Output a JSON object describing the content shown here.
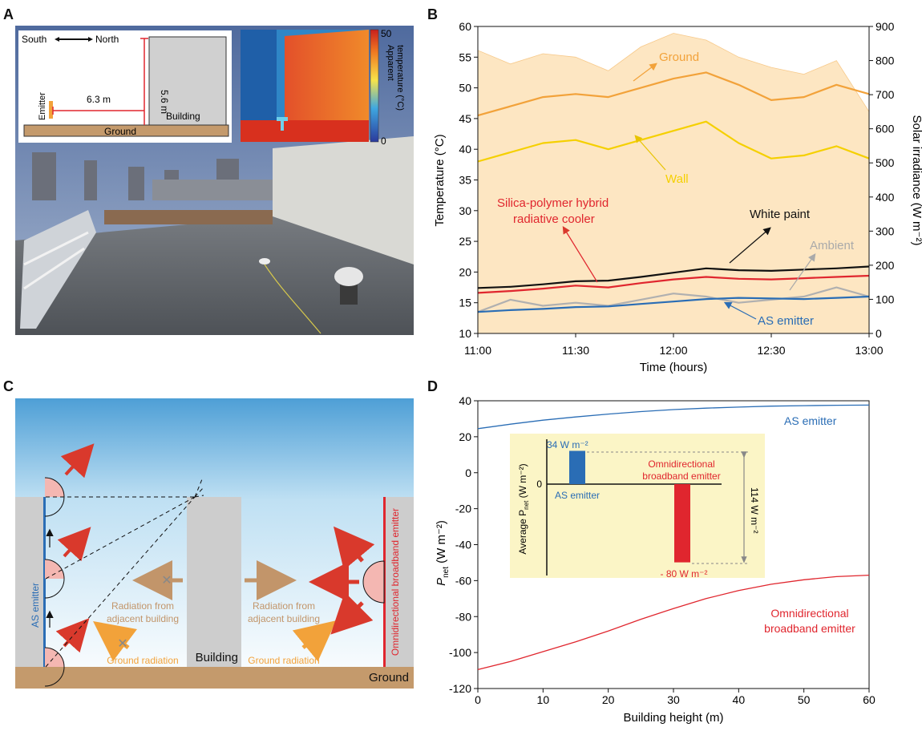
{
  "panels": {
    "a": "A",
    "b": "B",
    "c": "C",
    "d": "D"
  },
  "panelA": {
    "direction_south": "South",
    "direction_north": "North",
    "dist_horizontal": "6.3 m",
    "dist_vertical": "5.6 m",
    "emitter_label": "Emitter",
    "building_label": "Building",
    "ground_label": "Ground",
    "thermal": {
      "colorbar_max": "50",
      "colorbar_min": "0",
      "colorbar_label_1": "Apparent",
      "colorbar_label_2": "temperature (°C)"
    },
    "colors": {
      "photo_sky": "#5a6f9a",
      "roof": "#5b6066",
      "wall": "#d9d9d4",
      "thermal_hot": "#e0402a",
      "thermal_cold": "#3a8ad0"
    }
  },
  "panelC": {
    "as_emitter_label": "AS emitter",
    "omni_label": "Omnidirectional broadband emitter",
    "building_label": "Building",
    "ground_label": "Ground",
    "rad_adjacent_left_1": "Radiation from",
    "rad_adjacent_left_2": "adjacent building",
    "rad_adjacent_right_1": "Radiation from",
    "rad_adjacent_right_2": "adjacent building",
    "ground_rad_left": "Ground radiation",
    "ground_rad_right": "Ground radiation",
    "colors": {
      "sky_top": "#56a6d8",
      "building": "#cdcdcd",
      "ground": "#c49a6c",
      "as_emitter": "#2a6db5",
      "omni": "#e0262e",
      "arrow_red": "#d9392c",
      "arrow_brown": "#c2956a",
      "arrow_orange": "#f2a23a"
    }
  },
  "chart_data": [
    {
      "type": "line",
      "x_ticks": [
        "11:00",
        "11:30",
        "12:00",
        "12:30",
        "13:00"
      ],
      "xlabel": "Time (hours)",
      "ylabel": "Temperature (°C)",
      "ylabel_right": "Solar irradiance (W m⁻²)",
      "ylim": [
        10,
        60
      ],
      "ylim_right": [
        0,
        900
      ],
      "y_ticks": [
        "10",
        "15",
        "20",
        "25",
        "30",
        "35",
        "40",
        "45",
        "50",
        "55",
        "60"
      ],
      "y_ticks_right": [
        "0",
        "100",
        "200",
        "300",
        "400",
        "500",
        "600",
        "700",
        "800",
        "900"
      ],
      "x_minutes": [
        0,
        10,
        20,
        30,
        40,
        50,
        60,
        70,
        80,
        90,
        100,
        110,
        120
      ],
      "series": [
        {
          "name": "Ground",
          "color": "#f2a23a",
          "values": [
            45.5,
            47.0,
            48.5,
            49.0,
            48.5,
            50.0,
            51.5,
            52.5,
            50.5,
            48.0,
            48.5,
            50.5,
            49.0
          ]
        },
        {
          "name": "Wall",
          "color": "#f5d000",
          "values": [
            38.0,
            39.5,
            41.0,
            41.5,
            40.0,
            41.5,
            43.0,
            44.5,
            41.0,
            38.5,
            39.0,
            40.5,
            38.5
          ]
        },
        {
          "name": "White paint",
          "color": "#111111",
          "values": [
            17.4,
            17.6,
            18.0,
            18.5,
            18.6,
            19.2,
            19.9,
            20.6,
            20.3,
            20.2,
            20.4,
            20.6,
            20.9
          ]
        },
        {
          "name": "Silica-polymer hybrid radiative cooler",
          "color": "#e0262e",
          "values": [
            16.6,
            16.9,
            17.3,
            17.8,
            17.5,
            18.2,
            18.8,
            19.2,
            18.9,
            18.8,
            19.0,
            19.2,
            19.4
          ]
        },
        {
          "name": "Ambient",
          "color": "#b0b0b0",
          "values": [
            13.5,
            15.5,
            14.5,
            15.0,
            14.5,
            15.5,
            16.5,
            16.0,
            15.0,
            15.5,
            16.0,
            17.5,
            16.0
          ]
        },
        {
          "name": "AS emitter",
          "color": "#2a6db5",
          "values": [
            13.5,
            13.8,
            14.0,
            14.3,
            14.4,
            14.8,
            15.2,
            15.6,
            15.8,
            15.7,
            15.6,
            15.8,
            16.0
          ]
        }
      ],
      "irradiance": {
        "name": "Solar irradiance",
        "color": "#fde6c2",
        "values": [
          830,
          790,
          820,
          810,
          770,
          840,
          880,
          860,
          810,
          780,
          760,
          800,
          650
        ]
      },
      "labels": {
        "ground": "Ground",
        "wall": "Wall",
        "white_paint": "White paint",
        "cooler_1": "Silica-polymer hybrid",
        "cooler_2": "radiative cooler",
        "ambient": "Ambient",
        "as_emitter": "AS emitter"
      }
    },
    {
      "type": "line",
      "xlabel": "Building height (m)",
      "ylabel": "P",
      "ylabel_sub": "net",
      "ylabel_unit": " (W m⁻²)",
      "xlim": [
        0,
        60
      ],
      "ylim": [
        -120,
        40
      ],
      "x_ticks": [
        "0",
        "10",
        "20",
        "30",
        "40",
        "50",
        "60"
      ],
      "y_ticks": [
        "-120",
        "-100",
        "-80",
        "-60",
        "-40",
        "-20",
        "0",
        "20",
        "40"
      ],
      "x": [
        0,
        5,
        10,
        15,
        20,
        25,
        30,
        35,
        40,
        45,
        50,
        55,
        60
      ],
      "series": [
        {
          "name": "AS emitter",
          "color": "#2a6db5",
          "values": [
            24.5,
            27.0,
            29.2,
            31.0,
            32.6,
            34.0,
            35.1,
            35.9,
            36.5,
            37.0,
            37.3,
            37.5,
            37.6
          ]
        },
        {
          "name": "Omnidirectional broadband emitter",
          "color": "#e0262e",
          "values": [
            -109.5,
            -105.0,
            -99.5,
            -94.0,
            -88.0,
            -81.5,
            -75.5,
            -70.0,
            -65.5,
            -62.0,
            -59.5,
            -57.8,
            -57.0
          ]
        }
      ],
      "labels": {
        "as_emitter": "AS emitter",
        "omni_1": "Omnidirectional",
        "omni_2": "broadband emitter"
      },
      "inset": {
        "type": "bar",
        "ylabel": "Average P",
        "ylabel_sub": "net",
        "ylabel_unit": " (W m⁻²)",
        "zero_label": "0",
        "bars": [
          {
            "name": "AS emitter",
            "value": 34,
            "label": "34 W m⁻²",
            "color": "#2a6db5"
          },
          {
            "name": "Omnidirectional broadband emitter",
            "value": -80,
            "label": "- 80 W m⁻²",
            "color": "#e0262e"
          }
        ],
        "omni_1": "Omnidirectional",
        "omni_2": "broadband emitter",
        "as_label": "AS emitter",
        "difference_label": "114 W m⁻²",
        "background": "#fbf5c6"
      }
    }
  ]
}
